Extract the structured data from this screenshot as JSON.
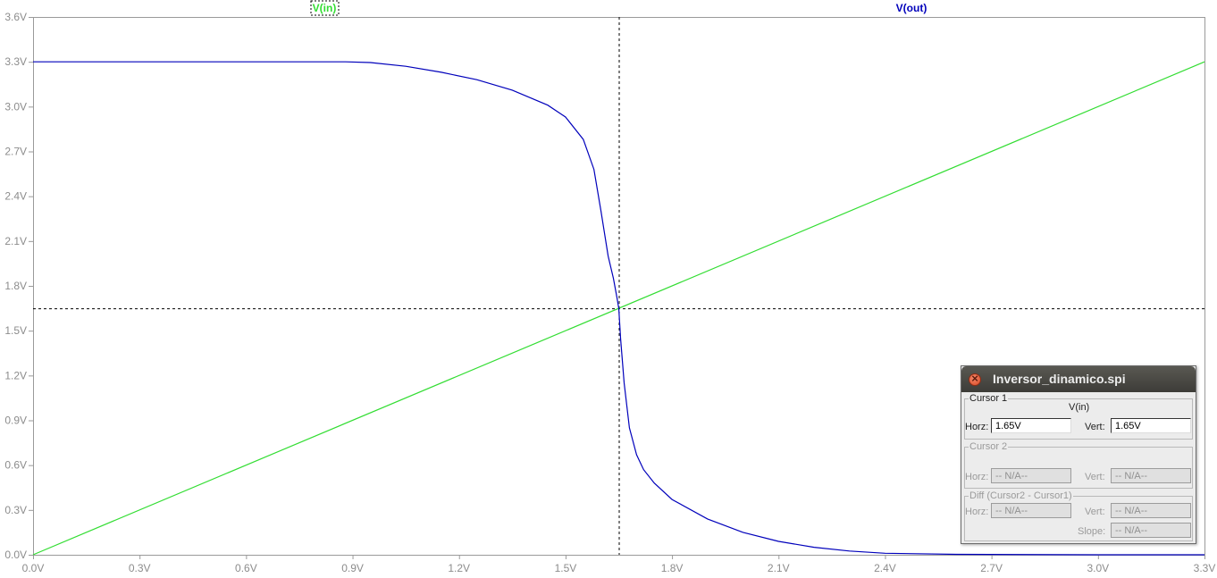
{
  "traces": {
    "vin": {
      "label": "V(in)",
      "color": "#33dd33"
    },
    "vout": {
      "label": "V(out)",
      "color": "#0000bb"
    }
  },
  "chart_data": {
    "type": "line",
    "x_ticks": [
      "0.0V",
      "0.3V",
      "0.6V",
      "0.9V",
      "1.2V",
      "1.5V",
      "1.8V",
      "2.1V",
      "2.4V",
      "2.7V",
      "3.0V",
      "3.3V"
    ],
    "y_ticks": [
      "0.0V",
      "0.3V",
      "0.6V",
      "0.9V",
      "1.2V",
      "1.5V",
      "1.8V",
      "2.1V",
      "2.4V",
      "2.7V",
      "3.0V",
      "3.3V",
      "3.6V"
    ],
    "xlim": [
      0,
      3.3
    ],
    "ylim": [
      0,
      3.6
    ],
    "grid": false,
    "series": [
      {
        "name": "V(in)",
        "x": [
          0,
          3.3
        ],
        "y": [
          0,
          3.3
        ]
      },
      {
        "name": "V(out)",
        "x": [
          0,
          0.5,
          0.88,
          0.95,
          1.05,
          1.15,
          1.25,
          1.35,
          1.45,
          1.5,
          1.55,
          1.58,
          1.6,
          1.62,
          1.635,
          1.645,
          1.65,
          1.655,
          1.665,
          1.68,
          1.7,
          1.72,
          1.75,
          1.8,
          1.9,
          2.0,
          2.1,
          2.2,
          2.3,
          2.4,
          2.6,
          3.0,
          3.3
        ],
        "y": [
          3.3,
          3.3,
          3.3,
          3.295,
          3.27,
          3.23,
          3.18,
          3.11,
          3.01,
          2.93,
          2.78,
          2.58,
          2.3,
          2.0,
          1.85,
          1.72,
          1.65,
          1.45,
          1.15,
          0.85,
          0.67,
          0.57,
          0.48,
          0.37,
          0.24,
          0.15,
          0.09,
          0.05,
          0.025,
          0.01,
          0.003,
          0.0,
          0.0
        ]
      }
    ],
    "cursor": {
      "x": 1.65,
      "y": 1.65
    }
  },
  "cursor_window": {
    "title": "Inversor_dinamico.spi",
    "cursor1": {
      "legend": "Cursor 1",
      "trace": "V(in)",
      "horz_label": "Horz:",
      "horz_value": "1.65V",
      "vert_label": "Vert:",
      "vert_value": "1.65V"
    },
    "cursor2": {
      "legend": "Cursor 2",
      "horz_label": "Horz:",
      "horz_value": "-- N/A--",
      "vert_label": "Vert:",
      "vert_value": "-- N/A--"
    },
    "diff": {
      "legend": "Diff (Cursor2 - Cursor1)",
      "horz_label": "Horz:",
      "horz_value": "-- N/A--",
      "vert_label": "Vert:",
      "vert_value": "-- N/A--",
      "slope_label": "Slope:",
      "slope_value": "-- N/A--"
    }
  }
}
